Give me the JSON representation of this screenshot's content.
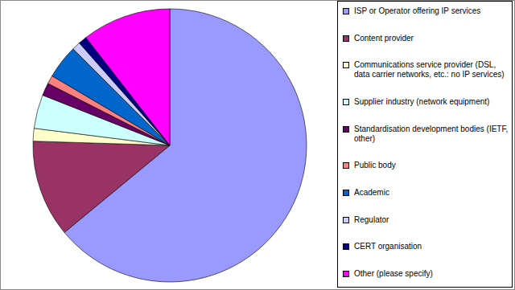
{
  "chart_data": {
    "type": "pie",
    "categories": [
      "ISP or Operator offering IP services",
      "Content provider",
      "Communications service provider (DSL, data carrier networks, etc.: no IP services)",
      "Supplier industry (network equipment)",
      "Standardisation development bodies (IETF, other)",
      "Public body",
      "Academic",
      "Regulator",
      "CERT organisation",
      "Other (please specify)"
    ],
    "values": [
      64,
      11.5,
      1.5,
      4,
      1.5,
      1,
      4,
      1,
      1,
      10.5
    ],
    "colors": [
      "#9999ff",
      "#993366",
      "#ffffcc",
      "#ccffff",
      "#660066",
      "#ff8080",
      "#0066cc",
      "#ccccff",
      "#000080",
      "#ff00ff"
    ],
    "legend": "right"
  }
}
